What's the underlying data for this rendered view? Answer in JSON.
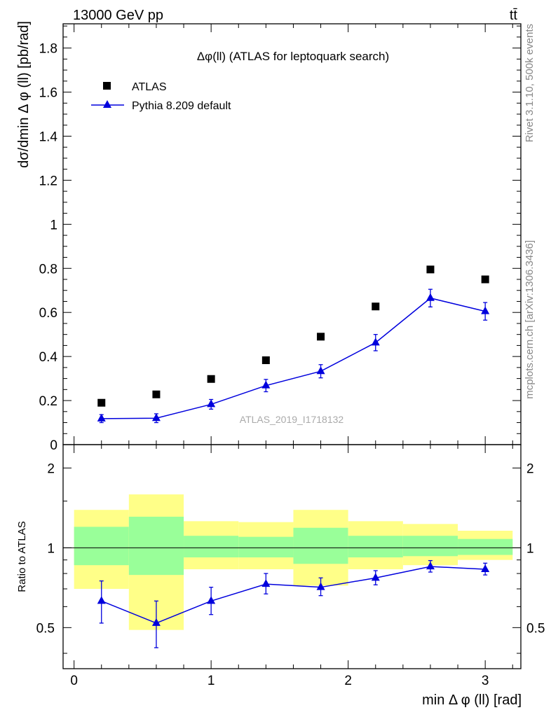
{
  "header": {
    "process": "13000 GeV pp",
    "channel": "tt̄"
  },
  "side_labels": {
    "rivet": "Rivet 3.1.10,  500k events",
    "mcplots": "mcplots.cern.ch [arXiv:1306.3436]"
  },
  "chart_data": [
    {
      "type": "scatter",
      "panel": "main",
      "title": "Δφ(ll) (ATLAS for leptoquark search)",
      "analysis_label": "ATLAS_2019_I1718132",
      "xlabel": "",
      "ylabel": "dσ/dmin Δ φ (ll) [pb/rad]",
      "xlim": [
        -0.08,
        3.26
      ],
      "ylim": [
        0,
        1.91
      ],
      "y_ticks": [
        0,
        0.2,
        0.4,
        0.6,
        0.8,
        1,
        1.2,
        1.4,
        1.6,
        1.8
      ],
      "y_tick_labels": [
        "0",
        "0.2",
        "0.4",
        "0.6",
        "0.8",
        "1",
        "1.2",
        "1.4",
        "1.6",
        "1.8"
      ],
      "legend_position": "top-left",
      "bin_edges": [
        0,
        0.4,
        0.8,
        1.2,
        1.6,
        2.0,
        2.4,
        2.8,
        3.2
      ],
      "series": [
        {
          "name": "ATLAS",
          "marker": "square",
          "color": "#000000",
          "x": [
            0.2,
            0.6,
            1.0,
            1.4,
            1.8,
            2.2,
            2.6,
            3.0
          ],
          "y": [
            0.19,
            0.228,
            0.298,
            0.383,
            0.49,
            0.627,
            0.795,
            0.75
          ]
        },
        {
          "name": "Pythia 8.209 default",
          "marker": "triangle",
          "color": "#0000dd",
          "x": [
            0.2,
            0.6,
            1.0,
            1.4,
            1.8,
            2.2,
            2.6,
            3.0
          ],
          "y": [
            0.118,
            0.12,
            0.183,
            0.268,
            0.333,
            0.463,
            0.665,
            0.605
          ],
          "err": [
            0.018,
            0.02,
            0.022,
            0.028,
            0.03,
            0.037,
            0.04,
            0.04
          ]
        }
      ]
    },
    {
      "type": "scatter",
      "panel": "ratio",
      "xlabel": "min Δ φ (ll) [rad]",
      "ylabel": "Ratio to ATLAS",
      "xlim": [
        -0.08,
        3.26
      ],
      "ylim": [
        0.35,
        2.45
      ],
      "scale": "log",
      "x_ticks": [
        0,
        1,
        2,
        3
      ],
      "x_tick_labels": [
        "0",
        "1",
        "2",
        "3"
      ],
      "y_ticks": [
        0.5,
        1,
        2
      ],
      "y_tick_labels": [
        "0.5",
        "1",
        "2"
      ],
      "reference_line": 1,
      "bands": {
        "bin_edges": [
          0,
          0.4,
          0.8,
          1.2,
          1.6,
          2.0,
          2.4,
          2.8,
          3.2
        ],
        "inner": {
          "color": "#99ff99",
          "lo": [
            0.86,
            0.79,
            0.92,
            0.92,
            0.87,
            0.92,
            0.93,
            0.94
          ],
          "hi": [
            1.2,
            1.31,
            1.11,
            1.1,
            1.19,
            1.11,
            1.11,
            1.08
          ]
        },
        "outer": {
          "color": "#ffff88",
          "lo": [
            0.7,
            0.49,
            0.83,
            0.83,
            0.72,
            0.83,
            0.86,
            0.9
          ],
          "hi": [
            1.39,
            1.59,
            1.26,
            1.25,
            1.39,
            1.26,
            1.23,
            1.16
          ]
        }
      },
      "series": [
        {
          "name": "Pythia 8.209 default",
          "marker": "triangle",
          "color": "#0000dd",
          "x": [
            0.2,
            0.6,
            1.0,
            1.4,
            1.8,
            2.2,
            2.6,
            3.0
          ],
          "y": [
            0.63,
            0.52,
            0.63,
            0.73,
            0.71,
            0.77,
            0.85,
            0.83
          ],
          "err_lo": [
            0.11,
            0.1,
            0.07,
            0.06,
            0.05,
            0.045,
            0.04,
            0.04
          ],
          "err_hi": [
            0.12,
            0.11,
            0.08,
            0.07,
            0.06,
            0.05,
            0.045,
            0.045
          ]
        }
      ]
    }
  ]
}
